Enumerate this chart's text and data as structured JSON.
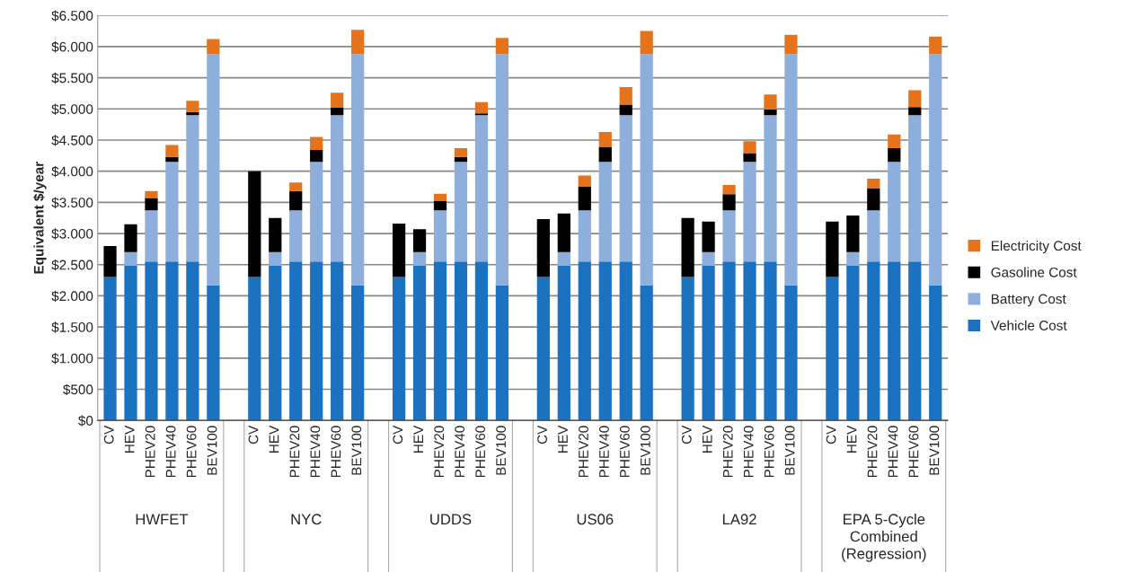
{
  "chart_data": {
    "type": "bar",
    "stacked": true,
    "ylabel": "Equivalent $/year",
    "categories": [
      "CV",
      "HEV",
      "PHEV20",
      "PHEV40",
      "PHEV60",
      "BEV100",
      null,
      "CV",
      "HEV",
      "PHEV20",
      "PHEV40",
      "PHEV60",
      "BEV100",
      null,
      "CV",
      "HEV",
      "PHEV20",
      "PHEV40",
      "PHEV60",
      "BEV100",
      null,
      "CV",
      "HEV",
      "PHEV20",
      "PHEV40",
      "PHEV60",
      "BEV100",
      null,
      "CV",
      "HEV",
      "PHEV20",
      "PHEV40",
      "PHEV60",
      "BEV100",
      null,
      "CV",
      "HEV",
      "PHEV20",
      "PHEV40",
      "PHEV60",
      "BEV100"
    ],
    "series": [
      {
        "name": "Vehicle Cost",
        "color": "#1a72c0",
        "values": [
          2300,
          2480,
          2550,
          2550,
          2550,
          2170,
          null,
          2300,
          2480,
          2550,
          2550,
          2550,
          2170,
          null,
          2300,
          2480,
          2550,
          2550,
          2550,
          2170,
          null,
          2300,
          2480,
          2550,
          2550,
          2550,
          2170,
          null,
          2300,
          2480,
          2550,
          2550,
          2550,
          2170,
          null,
          2300,
          2480,
          2550,
          2550,
          2550,
          2170
        ]
      },
      {
        "name": "Battery Cost",
        "color": "#8eaedc",
        "values": [
          0,
          220,
          820,
          1600,
          2350,
          3710,
          null,
          0,
          220,
          820,
          1600,
          2350,
          3710,
          null,
          0,
          220,
          820,
          1600,
          2350,
          3710,
          null,
          0,
          220,
          820,
          1600,
          2350,
          3710,
          null,
          0,
          220,
          820,
          1600,
          2350,
          3710,
          null,
          0,
          220,
          820,
          1600,
          2350,
          3710
        ]
      },
      {
        "name": "Gasoline Cost",
        "color": "#000000",
        "values": [
          500,
          450,
          200,
          80,
          50,
          0,
          null,
          1700,
          550,
          310,
          190,
          120,
          0,
          null,
          860,
          370,
          150,
          80,
          30,
          0,
          null,
          930,
          620,
          380,
          240,
          170,
          0,
          null,
          950,
          490,
          260,
          140,
          90,
          0,
          null,
          890,
          590,
          350,
          220,
          130,
          0
        ]
      },
      {
        "name": "Electricity Cost",
        "color": "#e5731c",
        "values": [
          0,
          0,
          110,
          190,
          180,
          240,
          null,
          0,
          0,
          140,
          210,
          240,
          390,
          null,
          0,
          0,
          120,
          140,
          180,
          260,
          null,
          0,
          0,
          180,
          240,
          280,
          370,
          null,
          0,
          0,
          150,
          190,
          240,
          310,
          null,
          0,
          0,
          160,
          220,
          270,
          280
        ]
      }
    ],
    "annotations": [
      "HWFET",
      "NYC",
      "UDDS",
      "US06",
      "LA92",
      "EPA 5-Cycle\nCombined\n(Regression)"
    ],
    "ylim": [
      0,
      6500
    ],
    "yticks": [
      {
        "value": 0,
        "label": "$0"
      },
      {
        "value": 500,
        "label": "$500"
      },
      {
        "value": 1000,
        "label": "$1.000"
      },
      {
        "value": 1500,
        "label": "$1.500"
      },
      {
        "value": 2000,
        "label": "$2.000"
      },
      {
        "value": 2500,
        "label": "$2.500"
      },
      {
        "value": 3000,
        "label": "$3.000"
      },
      {
        "value": 3500,
        "label": "$3.500"
      },
      {
        "value": 4000,
        "label": "$4.000"
      },
      {
        "value": 4500,
        "label": "$4.500"
      },
      {
        "value": 5000,
        "label": "$5.000"
      },
      {
        "value": 5500,
        "label": "$5.500"
      },
      {
        "value": 6000,
        "label": "$6.000"
      },
      {
        "value": 6500,
        "label": "$6.500"
      }
    ],
    "grid": "y",
    "legend": "right"
  }
}
